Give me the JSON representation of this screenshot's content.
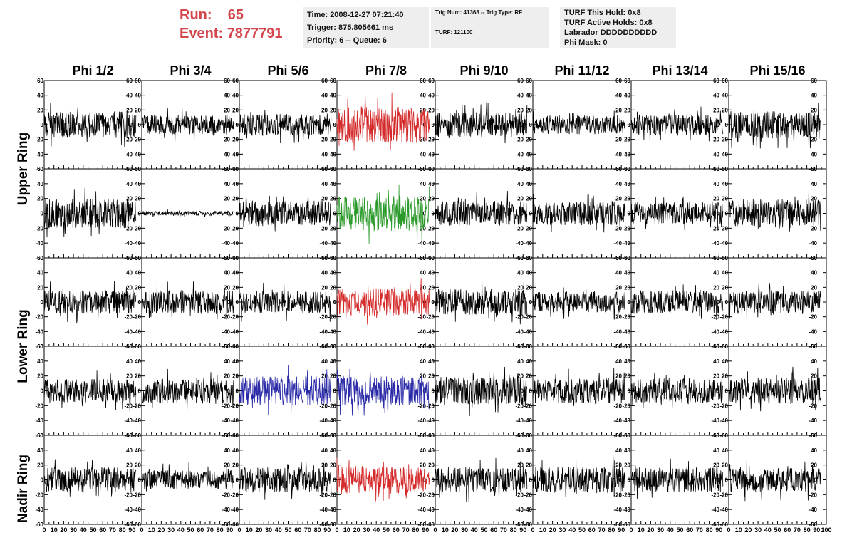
{
  "header": {
    "run_label": "Run:",
    "run_value": "65",
    "event_label": "Event:",
    "event_value": "7877791",
    "time": "Time: 2008-12-27 07:21:40",
    "trigger": "Trigger: 875.805661 ms",
    "priority": "Priority: 6 -- Queue: 6",
    "trig_num": "Trig Num: 41368 -- Trig Type: RF",
    "turf": "TURF: 121100",
    "turf_this_hold": "TURF This Hold: 0x8",
    "turf_active_holds": "TURF Active Holds: 0x8",
    "labrador": "Labrador DDDDDDDDDD",
    "phi_mask": "Phi Mask: 0"
  },
  "chart_data": {
    "type": "line",
    "columns": [
      "Phi 1/2",
      "Phi 3/4",
      "Phi 5/6",
      "Phi 7/8",
      "Phi 9/10",
      "Phi 11/12",
      "Phi 13/14",
      "Phi 15/16"
    ],
    "ring_labels": [
      "Upper Ring",
      "Lower Ring",
      "Nadir Ring"
    ],
    "rows": 5,
    "ylim": [
      -60,
      60
    ],
    "yticks": [
      -60,
      -40,
      -20,
      0,
      20,
      40,
      60
    ],
    "xlim": [
      0,
      100
    ],
    "xticks": [
      0,
      10,
      20,
      30,
      40,
      50,
      60,
      70,
      80,
      90,
      100
    ],
    "samples_per_trace": 260,
    "trace_span": [
      0,
      94
    ],
    "colors": {
      "default": "#000000",
      "red": "#d42a2a",
      "green": "#2a9a2a",
      "blue": "#2a2aa8"
    },
    "trace_color": [
      [
        "default",
        "default",
        "default",
        "red",
        "default",
        "default",
        "default",
        "default"
      ],
      [
        "default",
        "default",
        "default",
        "green",
        "default",
        "default",
        "default",
        "default"
      ],
      [
        "default",
        "default",
        "default",
        "red",
        "default",
        "default",
        "default",
        "default"
      ],
      [
        "default",
        "default",
        "blue",
        "blue",
        "default",
        "default",
        "default",
        "default"
      ],
      [
        "default",
        "default",
        "default",
        "red",
        "default",
        "default",
        "default",
        "default"
      ]
    ],
    "trace_amplitude": [
      [
        18,
        13,
        15,
        25,
        17,
        13,
        14,
        19
      ],
      [
        20,
        3,
        17,
        24,
        17,
        16,
        15,
        19
      ],
      [
        16,
        16,
        15,
        19,
        18,
        14,
        16,
        16
      ],
      [
        16,
        17,
        20,
        20,
        19,
        17,
        17,
        18
      ],
      [
        17,
        13,
        17,
        19,
        17,
        18,
        17,
        16
      ]
    ]
  }
}
